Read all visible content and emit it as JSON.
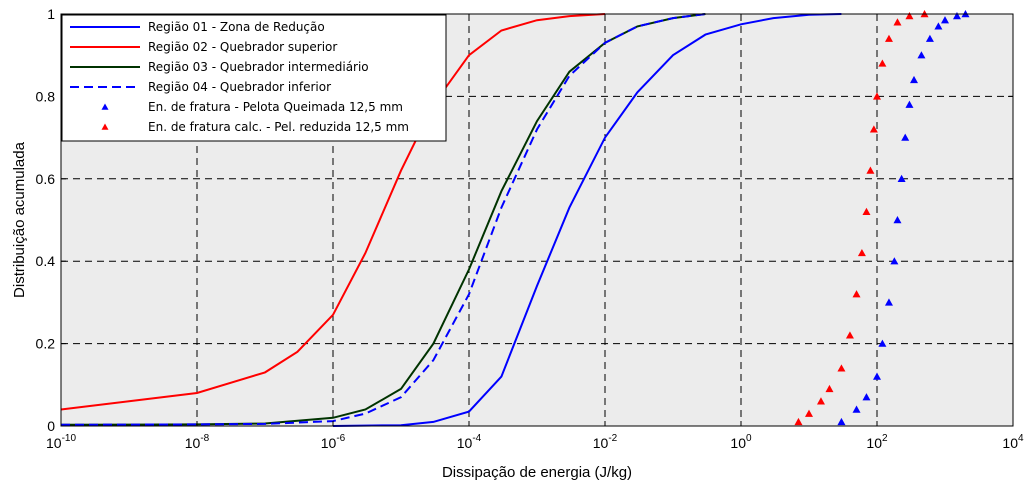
{
  "chart_data": {
    "type": "line",
    "xlabel": "Dissipação de energia (J/kg)",
    "ylabel": "Distribuição acumulada",
    "xscale": "log",
    "xlim": [
      1e-10,
      10000
    ],
    "ylim": [
      0,
      1
    ],
    "x_ticks": [
      {
        "base": "10",
        "exp": "-10",
        "value": 1e-10
      },
      {
        "base": "10",
        "exp": "-8",
        "value": 1e-08
      },
      {
        "base": "10",
        "exp": "-6",
        "value": 1e-06
      },
      {
        "base": "10",
        "exp": "-4",
        "value": 0.0001
      },
      {
        "base": "10",
        "exp": "-2",
        "value": 0.01
      },
      {
        "base": "10",
        "exp": "0",
        "value": 1
      },
      {
        "base": "10",
        "exp": "2",
        "value": 100
      },
      {
        "base": "10",
        "exp": "4",
        "value": 10000
      }
    ],
    "y_ticks": [
      "0",
      "0.2",
      "0.4",
      "0.6",
      "0.8",
      "1"
    ],
    "grid": true,
    "grid_style": "dashed",
    "background": "#ececec",
    "legend_position": "top-left",
    "series": [
      {
        "name": "Região 01 - Zona de Redução",
        "kind": "line",
        "color": "#0000ff",
        "style": "solid",
        "x": [
          1e-06,
          1e-05,
          3e-05,
          0.0001,
          0.0003,
          0.001,
          0.003,
          0.01,
          0.03,
          0.1,
          0.3,
          1,
          3,
          10,
          30
        ],
        "y": [
          0,
          0.002,
          0.01,
          0.035,
          0.12,
          0.34,
          0.53,
          0.7,
          0.81,
          0.9,
          0.95,
          0.975,
          0.99,
          0.998,
          1.0
        ]
      },
      {
        "name": "Região 02 - Quebrador superior",
        "kind": "line",
        "color": "#ff0000",
        "style": "solid",
        "x": [
          1e-10,
          1e-09,
          1e-08,
          1e-07,
          3e-07,
          1e-06,
          3e-06,
          1e-05,
          3e-05,
          0.0001,
          0.0003,
          0.001,
          0.003,
          0.01
        ],
        "y": [
          0.04,
          0.06,
          0.08,
          0.13,
          0.18,
          0.27,
          0.42,
          0.62,
          0.78,
          0.9,
          0.96,
          0.985,
          0.995,
          1.0
        ]
      },
      {
        "name": "Região 03 - Quebrador intermediário",
        "kind": "line",
        "color": "#003300",
        "style": "solid",
        "x": [
          1e-10,
          1e-08,
          1e-07,
          1e-06,
          3e-06,
          1e-05,
          3e-05,
          0.0001,
          0.0003,
          0.001,
          0.003,
          0.01,
          0.03,
          0.1,
          0.3
        ],
        "y": [
          0.003,
          0.004,
          0.006,
          0.02,
          0.04,
          0.09,
          0.2,
          0.38,
          0.57,
          0.74,
          0.86,
          0.93,
          0.97,
          0.99,
          1.0
        ]
      },
      {
        "name": "Região 04 - Quebrador inferior",
        "kind": "line",
        "color": "#0000ff",
        "style": "dashed",
        "x": [
          1e-10,
          1e-08,
          1e-07,
          1e-06,
          3e-06,
          1e-05,
          3e-05,
          0.0001,
          0.0003,
          0.001,
          0.003,
          0.01,
          0.03,
          0.1,
          0.3
        ],
        "y": [
          0.003,
          0.004,
          0.005,
          0.012,
          0.03,
          0.07,
          0.16,
          0.32,
          0.53,
          0.72,
          0.85,
          0.93,
          0.97,
          0.99,
          1.0
        ]
      },
      {
        "name": "En. de fratura - Pelota Queimada 12,5 mm",
        "kind": "scatter",
        "color": "#0000ff",
        "marker": "triangle",
        "x": [
          30,
          50,
          70,
          100,
          120,
          150,
          180,
          200,
          230,
          260,
          300,
          350,
          450,
          600,
          800,
          1000,
          1500,
          2000
        ],
        "y": [
          0.01,
          0.04,
          0.07,
          0.12,
          0.2,
          0.3,
          0.4,
          0.5,
          0.6,
          0.7,
          0.78,
          0.84,
          0.9,
          0.94,
          0.97,
          0.985,
          0.995,
          1.0
        ]
      },
      {
        "name": "En. de fratura calc. - Pel. reduzida 12,5 mm",
        "kind": "scatter",
        "color": "#ff0000",
        "marker": "triangle",
        "x": [
          7,
          10,
          15,
          20,
          30,
          40,
          50,
          60,
          70,
          80,
          90,
          100,
          120,
          150,
          200,
          300,
          500
        ],
        "y": [
          0.01,
          0.03,
          0.06,
          0.09,
          0.14,
          0.22,
          0.32,
          0.42,
          0.52,
          0.62,
          0.72,
          0.8,
          0.88,
          0.94,
          0.98,
          0.995,
          1.0
        ]
      }
    ]
  }
}
